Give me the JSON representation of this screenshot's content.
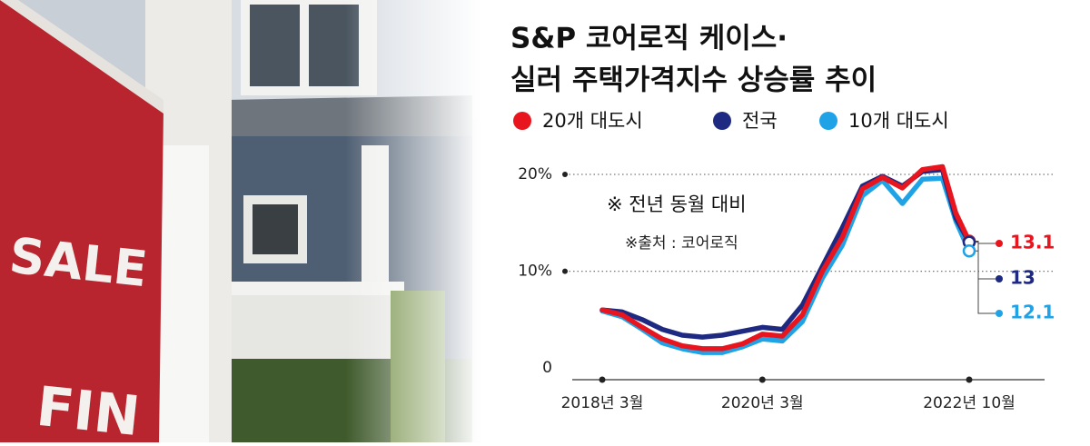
{
  "photo": {
    "sign_lines": [
      "SALE",
      "FIN"
    ]
  },
  "chart_data": {
    "type": "line",
    "title": [
      "S&P 코어로직 케이스·",
      "실러 주택가격지수 상승률 추이"
    ],
    "annotations": [
      "※ 전년 동월 대비",
      "※출처 : 코어로직"
    ],
    "x": [
      "2018-03",
      "2018-06",
      "2018-09",
      "2018-12",
      "2019-03",
      "2019-06",
      "2019-09",
      "2019-12",
      "2020-03",
      "2020-06",
      "2020-09",
      "2020-12",
      "2021-03",
      "2021-06",
      "2021-09",
      "2021-12",
      "2022-03",
      "2022-06",
      "2022-08",
      "2022-10"
    ],
    "xticks": [
      {
        "value": "2018-03",
        "label": "2018년 3월"
      },
      {
        "value": "2020-03",
        "label": "2020년 3월"
      },
      {
        "value": "2022-10",
        "label": "2022년 10월"
      }
    ],
    "ylim": [
      -1.2,
      21.5
    ],
    "yticks": [
      0,
      {
        "value": 10,
        "label": "10%"
      },
      {
        "value": 20,
        "label": "20%"
      }
    ],
    "grid": true,
    "legend": "top",
    "series": [
      {
        "name": "20개 대도시",
        "color": "#e8141e",
        "values": [
          6.0,
          5.5,
          4.2,
          3.0,
          2.3,
          2.0,
          2.0,
          2.5,
          3.5,
          3.3,
          5.5,
          10.0,
          13.5,
          18.5,
          19.7,
          18.6,
          20.5,
          20.8,
          16.0,
          13.1
        ]
      },
      {
        "name": "전국",
        "color": "#1e2a82",
        "values": [
          6.0,
          5.8,
          5.0,
          4.0,
          3.4,
          3.2,
          3.4,
          3.8,
          4.2,
          4.0,
          6.5,
          10.5,
          14.5,
          18.8,
          19.8,
          18.8,
          20.3,
          20.5,
          15.5,
          13.0
        ]
      },
      {
        "name": "10개 대도시",
        "color": "#1fa3e6",
        "values": [
          5.9,
          5.3,
          4.0,
          2.6,
          2.0,
          1.6,
          1.6,
          2.2,
          3.0,
          2.8,
          4.8,
          9.3,
          12.7,
          17.8,
          19.4,
          17.0,
          19.5,
          19.6,
          15.2,
          12.1
        ]
      }
    ]
  }
}
